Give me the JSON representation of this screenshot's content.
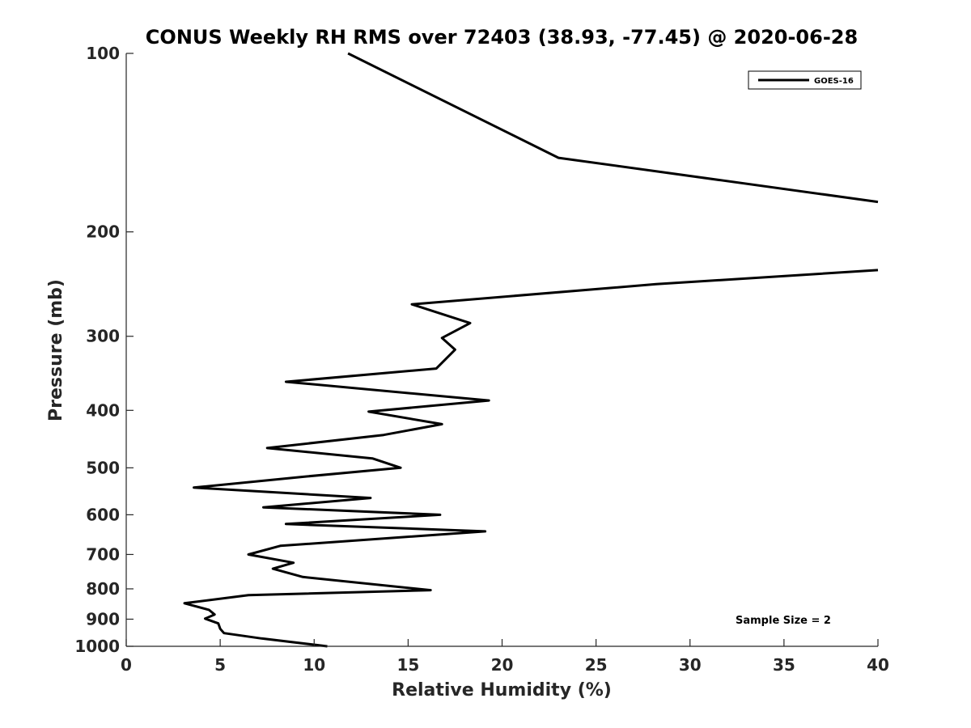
{
  "chart_data": {
    "type": "line",
    "title": "CONUS Weekly RH RMS over 72403 (38.93, -77.45) @ 2020-06-28",
    "xlabel": "Relative Humidity (%)",
    "ylabel": "Pressure (mb)",
    "xlim": [
      0,
      40
    ],
    "ylim": [
      100,
      1000
    ],
    "y_scale": "log",
    "y_reversed": true,
    "grid": false,
    "x_ticks": [
      "0",
      "5",
      "10",
      "15",
      "20",
      "25",
      "30",
      "35",
      "40"
    ],
    "y_ticks": [
      "100",
      "200",
      "300",
      "400",
      "500",
      "600",
      "700",
      "800",
      "900",
      "1000"
    ],
    "legend": {
      "entries": [
        "GOES-16"
      ],
      "placement": "top-right"
    },
    "annotation": "Sample Size = 2",
    "series": [
      {
        "name": "GOES-16",
        "color": "#000000",
        "segments": [
          [
            {
              "x": 11.8,
              "y": 100
            },
            {
              "x": 23.0,
              "y": 150
            },
            {
              "x": 40.0,
              "y": 178
            }
          ],
          [
            {
              "x": 40.0,
              "y": 232
            },
            {
              "x": 28.2,
              "y": 245
            },
            {
              "x": 15.2,
              "y": 265
            },
            {
              "x": 18.3,
              "y": 285
            },
            {
              "x": 16.8,
              "y": 302
            },
            {
              "x": 17.5,
              "y": 316
            },
            {
              "x": 16.5,
              "y": 340
            },
            {
              "x": 8.5,
              "y": 358
            },
            {
              "x": 19.3,
              "y": 385
            },
            {
              "x": 12.9,
              "y": 402
            },
            {
              "x": 16.8,
              "y": 422
            },
            {
              "x": 13.7,
              "y": 440
            },
            {
              "x": 7.5,
              "y": 463
            },
            {
              "x": 13.1,
              "y": 482
            },
            {
              "x": 14.6,
              "y": 500
            },
            {
              "x": 9.6,
              "y": 517
            },
            {
              "x": 3.6,
              "y": 540
            },
            {
              "x": 13.0,
              "y": 562
            },
            {
              "x": 7.3,
              "y": 583
            },
            {
              "x": 16.7,
              "y": 600
            },
            {
              "x": 8.5,
              "y": 622
            },
            {
              "x": 19.1,
              "y": 640
            },
            {
              "x": 8.2,
              "y": 677
            },
            {
              "x": 6.5,
              "y": 700
            },
            {
              "x": 8.9,
              "y": 723
            },
            {
              "x": 7.8,
              "y": 740
            },
            {
              "x": 9.4,
              "y": 764
            },
            {
              "x": 16.2,
              "y": 804
            },
            {
              "x": 6.5,
              "y": 820
            },
            {
              "x": 3.1,
              "y": 846
            },
            {
              "x": 4.4,
              "y": 868
            },
            {
              "x": 4.7,
              "y": 884
            },
            {
              "x": 4.2,
              "y": 898
            },
            {
              "x": 4.9,
              "y": 915
            },
            {
              "x": 5.0,
              "y": 934
            },
            {
              "x": 5.2,
              "y": 950
            },
            {
              "x": 7.2,
              "y": 970
            },
            {
              "x": 10.7,
              "y": 1000
            }
          ]
        ]
      }
    ]
  }
}
